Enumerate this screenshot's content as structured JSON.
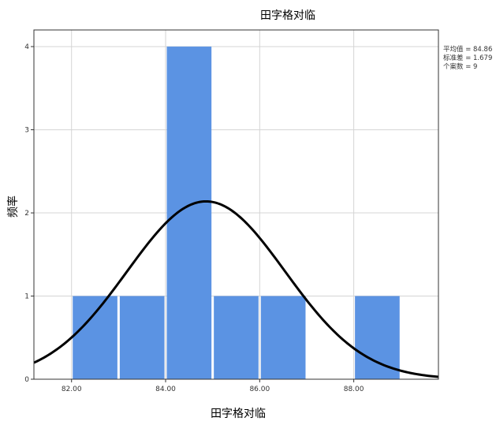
{
  "chart_data": {
    "type": "bar",
    "title": "田字格对临",
    "xlabel": "田字格对临",
    "ylabel": "频率",
    "bin_edges": [
      82,
      83,
      84,
      85,
      86,
      87,
      88,
      89
    ],
    "values": [
      1,
      1,
      4,
      1,
      1,
      0,
      1
    ],
    "x_ticks": [
      "82.00",
      "84.00",
      "86.00",
      "88.00"
    ],
    "x_tick_values": [
      82,
      84,
      86,
      88
    ],
    "y_ticks": [
      "0",
      "1",
      "2",
      "3",
      "4"
    ],
    "xlim": [
      81.2,
      89.8
    ],
    "ylim": [
      0,
      4.2
    ],
    "grid": true,
    "bar_color": "#5b93e3",
    "curve_color": "#000000",
    "normal_curve": {
      "mean": 84.86,
      "std": 1.679,
      "n": 9,
      "bin_width": 1
    },
    "stats_text": [
      "平均值 = 84.86",
      "标准差 = 1.679",
      "个案数 = 9"
    ]
  }
}
